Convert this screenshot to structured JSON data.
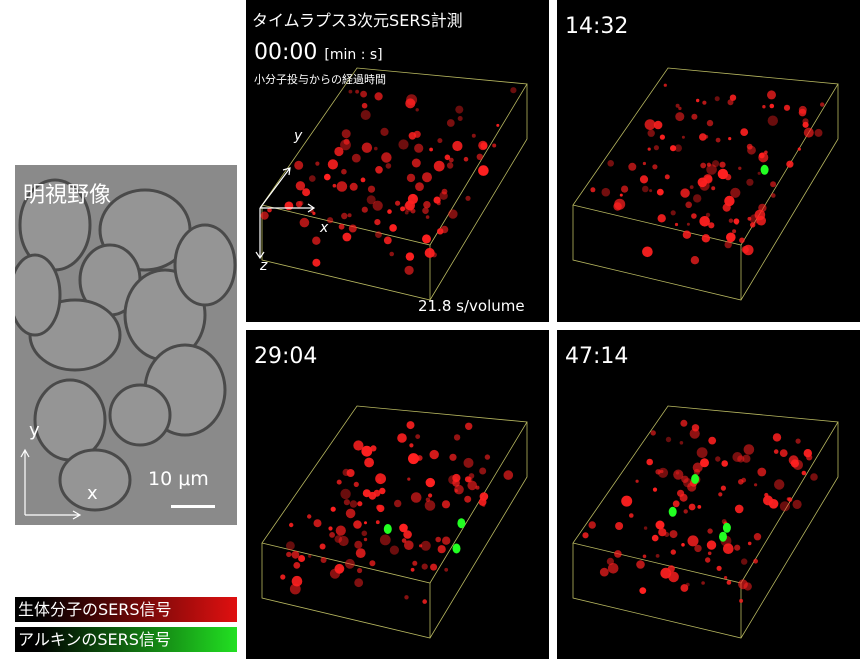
{
  "brightfield": {
    "title": "明視野像",
    "axis_y": "y",
    "axis_x": "x",
    "scale_label": "10 μm"
  },
  "panels": [
    {
      "time": "00:00",
      "title": "タイムラプス3次元SERS計測",
      "unit": "[min : s]",
      "subtitle": "小分子投与からの経過時間",
      "rate": "21.8 s/volume",
      "axes": {
        "x": "x",
        "y": "y",
        "z": "z"
      },
      "green_spots": 0
    },
    {
      "time": "14:32",
      "green_spots": 1
    },
    {
      "time": "29:04",
      "green_spots": 3
    },
    {
      "time": "47:14",
      "green_spots": 4
    }
  ],
  "legend": [
    {
      "label": "生体分子のSERS信号",
      "color": "#e01010"
    },
    {
      "label": "アルキンのSERS信号",
      "color": "#22e022"
    }
  ],
  "colors": {
    "biomolecule_signal": "#ff2020",
    "alkyne_signal": "#22ff22",
    "box_outline": "#b8b860"
  }
}
